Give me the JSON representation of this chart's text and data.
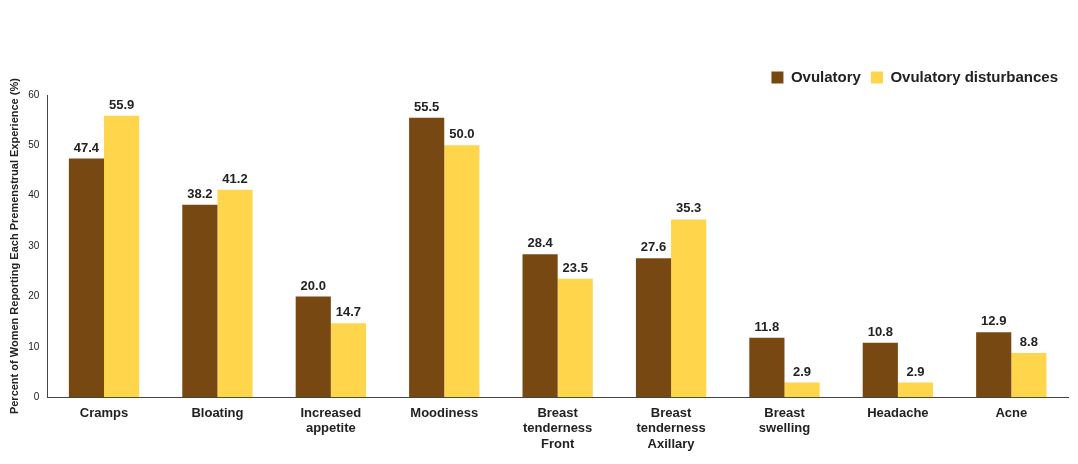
{
  "chart_data": {
    "type": "bar",
    "ylabel": "Percent of Women Reporting Each Premenstrual Experience (%)",
    "categories": [
      "Cramps",
      "Bloating",
      "Increased appetite",
      "Moodiness",
      "Breast tenderness Front",
      "Breast tenderness Axillary",
      "Breast swelling",
      "Headache",
      "Acne"
    ],
    "series": [
      {
        "name": "Ovulatory",
        "color": "#774811",
        "values": [
          47.4,
          38.2,
          20.0,
          55.5,
          28.4,
          27.6,
          11.8,
          10.8,
          12.9
        ],
        "value_labels": [
          "47.4",
          "38.2",
          "20.0",
          "55.5",
          "28.4",
          "27.6",
          "11.8",
          "10.8",
          "12.9"
        ]
      },
      {
        "name": "Ovulatory disturbances",
        "color": "#ffd54c",
        "values": [
          55.9,
          41.2,
          14.7,
          50.0,
          23.5,
          35.3,
          2.9,
          2.9,
          8.8
        ],
        "value_labels": [
          "55.9",
          "41.2",
          "14.7",
          "50.0",
          "23.5",
          "35.3",
          "2.9",
          "2.9",
          "8.8"
        ]
      }
    ],
    "ylim": [
      0,
      60
    ],
    "yticks": [
      0,
      10,
      20,
      30,
      40,
      50,
      60
    ],
    "grid": false,
    "legend": "top right"
  }
}
